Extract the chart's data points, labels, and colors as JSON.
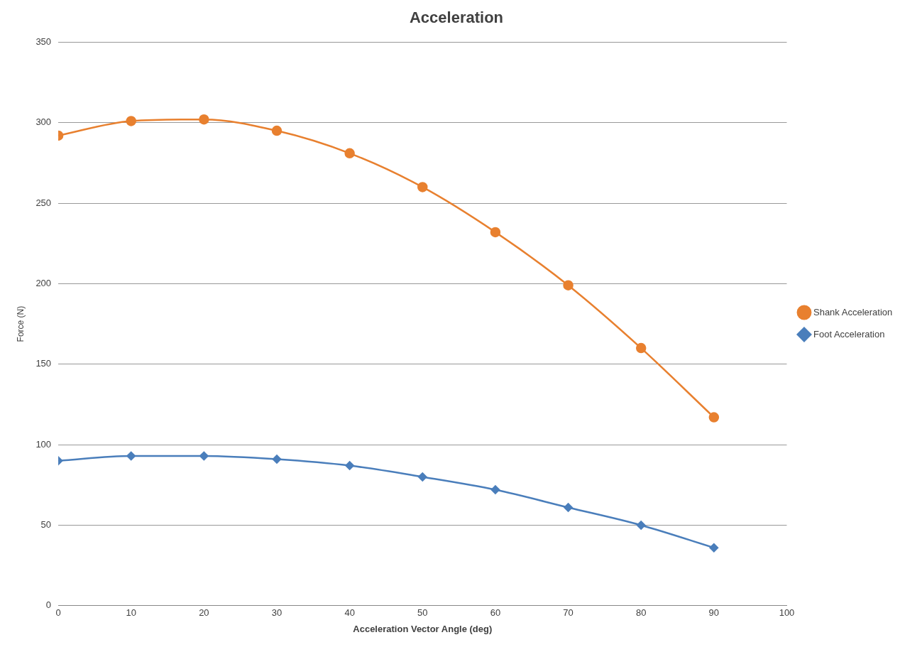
{
  "chart_data": {
    "type": "line",
    "title": "Acceleration",
    "xlabel": "Acceleration Vector Angle (deg)",
    "ylabel": "Force (N)",
    "x": [
      0,
      10,
      20,
      30,
      40,
      50,
      60,
      70,
      80,
      90
    ],
    "series": [
      {
        "name": "Shank Acceleration",
        "color": "#e8802f",
        "marker": "circle",
        "values": [
          292,
          301,
          302,
          295,
          281,
          260,
          232,
          199,
          160,
          117
        ]
      },
      {
        "name": "Foot Acceleration",
        "color": "#4a7ebb",
        "marker": "diamond",
        "values": [
          90,
          93,
          93,
          91,
          87,
          80,
          72,
          61,
          50,
          36
        ]
      }
    ],
    "xlim": [
      0,
      100
    ],
    "xticks": [
      0,
      10,
      20,
      30,
      40,
      50,
      60,
      70,
      80,
      90,
      100
    ],
    "ylim": [
      0,
      350
    ],
    "yticks": [
      0,
      50,
      100,
      150,
      200,
      250,
      300,
      350
    ],
    "grid": "y",
    "legend": "right"
  }
}
